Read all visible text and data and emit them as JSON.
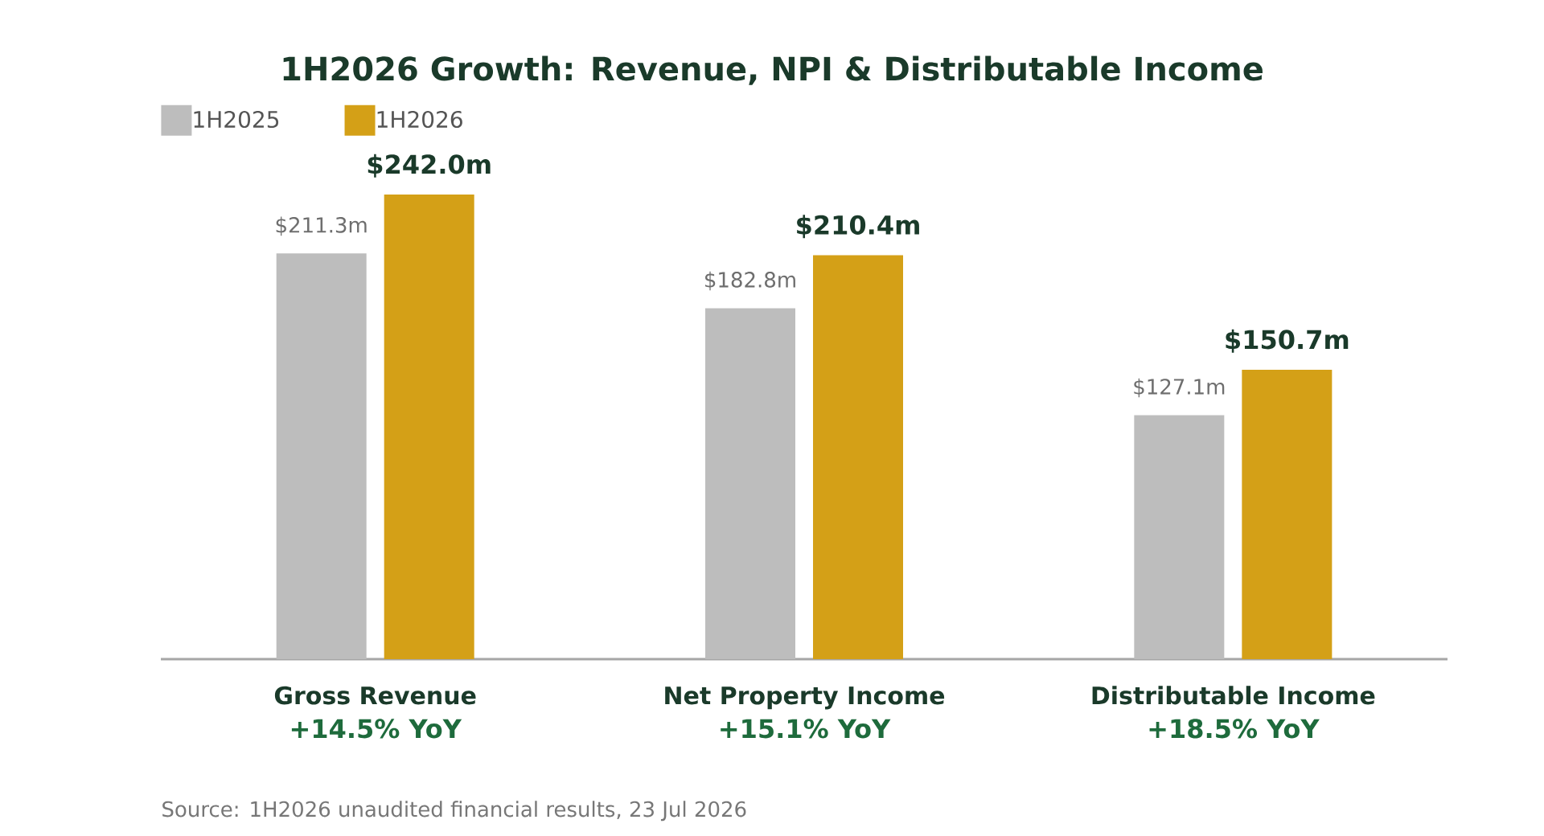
{
  "chart_data": {
    "type": "bar",
    "title": "1H2026 Growth: Revenue, NPI & Distributable Income",
    "categories": [
      "Gross Revenue",
      "Net Property Income",
      "Distributable Income"
    ],
    "series": [
      {
        "name": "1H2025",
        "color": "#bdbdbd",
        "values": [
          211.3,
          182.8,
          127.1
        ],
        "value_labels": [
          "$211.3m",
          "$182.8m",
          "$127.1m"
        ]
      },
      {
        "name": "1H2026",
        "color": "#d4a017",
        "values": [
          242.0,
          210.4,
          150.7
        ],
        "value_labels": [
          "$242.0m",
          "$210.4m",
          "$150.7m"
        ]
      }
    ],
    "legend": "top left",
    "annotations": [
      "+14.5% YoY",
      "+15.1% YoY",
      "+18.5% YoY",
      "Source: 1H2026 unaudited financial results, 23 Jul 2026"
    ]
  }
}
